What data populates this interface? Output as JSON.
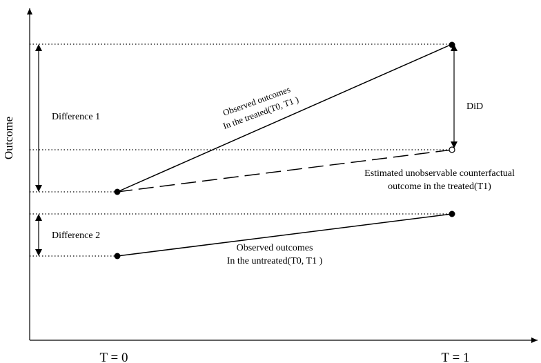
{
  "axes": {
    "y_label": "Outcome",
    "x_ticks": [
      "T = 0",
      "T = 1"
    ]
  },
  "annotations": {
    "difference1": "Difference 1",
    "difference2": "Difference 2",
    "did": "DiD",
    "treated_line1": "Observed outcomes",
    "treated_line2": "In the treated(T0, T1 )",
    "untreated_line1": "Observed outcomes",
    "untreated_line2": "In the untreated(T0, T1 )",
    "counterfactual_line1": "Estimated unobservable counterfactual",
    "counterfactual_line2": "outcome in the treated(T1)"
  },
  "colors": {
    "ink": "#000000",
    "background": "#ffffff"
  }
}
